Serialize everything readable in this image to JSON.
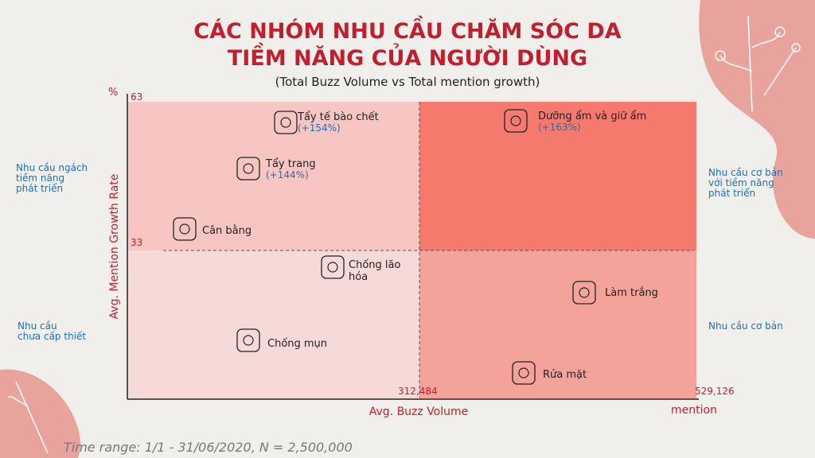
{
  "header": {
    "title": [
      "CÁC NHÓM NHU CẦU CHĂM SÓC DA",
      "TIỀM NĂNG CỦA NGƯỜI DÙNG"
    ],
    "subtitle": "(Total Buzz Volume vs Total mention growth)"
  },
  "axes": {
    "y_unit": "%",
    "y_top": "63",
    "y_mid": "33",
    "y_title": "Avg. Mention Growth Rate",
    "x_mid": "312,484",
    "x_end": "529,126",
    "x_title": "Avg. Buzz Volume",
    "x_unit": "mention"
  },
  "quadrants": [
    {
      "lines": [
        "Nhu cầu ngách",
        "tiềm năng",
        "phát triển"
      ]
    },
    {
      "lines": [
        "Nhu cầu cơ bản",
        "với tiềm năng",
        "phát triển"
      ]
    },
    {
      "lines": [
        "Nhu cầu",
        "chưa cấp thiết"
      ]
    },
    {
      "lines": [
        "Nhu cầu cơ bản"
      ]
    }
  ],
  "items": [
    {
      "lines": [
        "Tẩy tế bào chết"
      ],
      "growth": "(+154%)"
    },
    {
      "lines": [
        "Dưỡng ẩm và giữ ẩm"
      ],
      "growth": "(+163%)"
    },
    {
      "lines": [
        "Tẩy trang"
      ],
      "growth": "(+144%)"
    },
    {
      "lines": [
        "Cân bằng"
      ]
    },
    {
      "lines": [
        "Chống lão",
        "hóa"
      ]
    },
    {
      "lines": [
        "Làm trắng"
      ]
    },
    {
      "lines": [
        "Chống mụn"
      ]
    },
    {
      "lines": [
        "Rửa mặt"
      ]
    }
  ],
  "footer": "Time range: 1/1 - 31/06/2020, N = 2,500,000"
}
